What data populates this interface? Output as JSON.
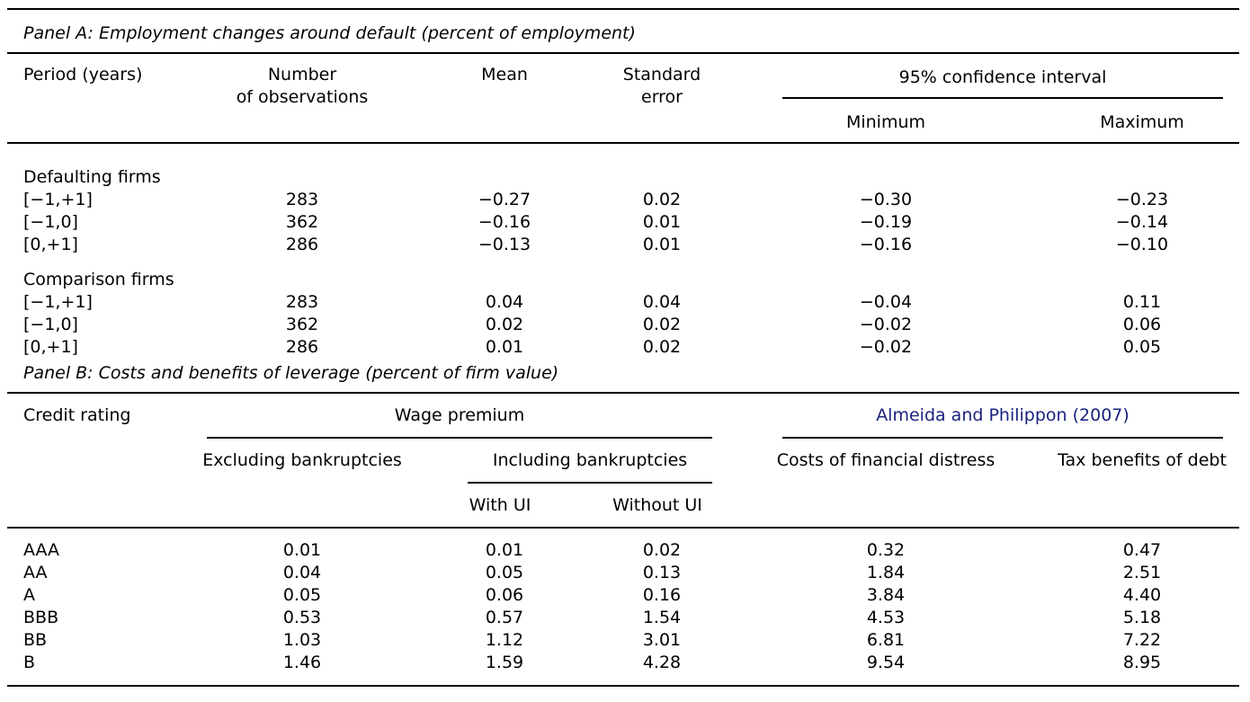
{
  "panel_a": {
    "title": "Panel A: Employment changes around default (percent of employment)",
    "headers": {
      "period": "Period (years)",
      "nobs_line1": "Number",
      "nobs_line2": "of observations",
      "mean": "Mean",
      "se_line1": "Standard",
      "se_line2": "error",
      "ci": "95% confidence interval",
      "ci_min": "Minimum",
      "ci_max": "Maximum"
    },
    "groups": [
      {
        "label": "Defaulting firms",
        "rows": [
          {
            "period": "[−1,+1]",
            "n": "283",
            "mean": "−0.27",
            "se": "0.02",
            "min": "−0.30",
            "max": "−0.23"
          },
          {
            "period": "[−1,0]",
            "n": "362",
            "mean": "−0.16",
            "se": "0.01",
            "min": "−0.19",
            "max": "−0.14"
          },
          {
            "period": "[0,+1]",
            "n": "286",
            "mean": "−0.13",
            "se": "0.01",
            "min": "−0.16",
            "max": "−0.10"
          }
        ]
      },
      {
        "label": "Comparison firms",
        "rows": [
          {
            "period": "[−1,+1]",
            "n": "283",
            "mean": "0.04",
            "se": "0.04",
            "min": "−0.04",
            "max": "0.11"
          },
          {
            "period": "[−1,0]",
            "n": "362",
            "mean": "0.02",
            "se": "0.02",
            "min": "−0.02",
            "max": "0.06"
          },
          {
            "period": "[0,+1]",
            "n": "286",
            "mean": "0.01",
            "se": "0.02",
            "min": "−0.02",
            "max": "0.05"
          }
        ]
      }
    ]
  },
  "panel_b": {
    "title": "Panel B: Costs and benefits of leverage (percent of firm value)",
    "headers": {
      "rating": "Credit rating",
      "wage_premium": "Wage premium",
      "almeida": "Almeida and Philippon (2007)",
      "excl": "Excluding bankruptcies",
      "incl": "Including bankruptcies",
      "with_ui": "With UI",
      "without_ui": "Without UI",
      "costs": "Costs of financial distress",
      "tax": "Tax benefits of debt"
    },
    "rows": [
      {
        "rating": "AAA",
        "excl": "0.01",
        "with_ui": "0.01",
        "without_ui": "0.02",
        "costs": "0.32",
        "tax": "0.47"
      },
      {
        "rating": "AA",
        "excl": "0.04",
        "with_ui": "0.05",
        "without_ui": "0.13",
        "costs": "1.84",
        "tax": "2.51"
      },
      {
        "rating": "A",
        "excl": "0.05",
        "with_ui": "0.06",
        "without_ui": "0.16",
        "costs": "3.84",
        "tax": "4.40"
      },
      {
        "rating": "BBB",
        "excl": "0.53",
        "with_ui": "0.57",
        "without_ui": "1.54",
        "costs": "4.53",
        "tax": "5.18"
      },
      {
        "rating": "BB",
        "excl": "1.03",
        "with_ui": "1.12",
        "without_ui": "3.01",
        "costs": "6.81",
        "tax": "7.22"
      },
      {
        "rating": "B",
        "excl": "1.46",
        "with_ui": "1.59",
        "without_ui": "4.28",
        "costs": "9.54",
        "tax": "8.95"
      }
    ]
  }
}
